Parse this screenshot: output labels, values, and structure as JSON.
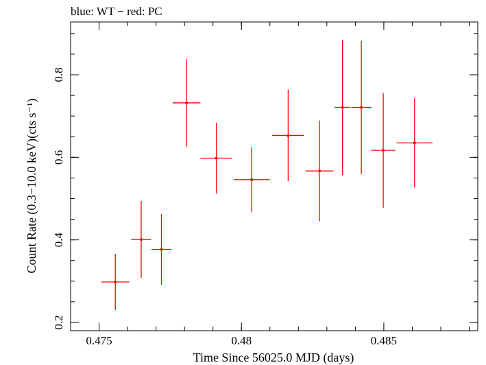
{
  "chart_data": {
    "type": "scatter",
    "title": "blue: WT − red: PC",
    "xlabel": "Time Since 56025.0 MJD (days)",
    "ylabel": "Count Rate (0.3−10.0 keV)(cts s⁻¹)",
    "xlim": [
      0.474,
      0.4883
    ],
    "ylim": [
      0.18,
      0.928
    ],
    "x_ticks": [
      {
        "value": 0.475,
        "label": "0.475"
      },
      {
        "value": 0.48,
        "label": "0.48"
      },
      {
        "value": 0.485,
        "label": "0.485"
      }
    ],
    "x_minor_step": 0.001,
    "y_ticks": [
      {
        "value": 0.2,
        "label": "0.2"
      },
      {
        "value": 0.4,
        "label": "0.4"
      },
      {
        "value": 0.6,
        "label": "0.6"
      },
      {
        "value": 0.8,
        "label": "0.8"
      }
    ],
    "y_minor_step": 0.05,
    "grid": false,
    "legend": "none",
    "series": [
      {
        "color": "#ff0000",
        "points": [
          {
            "x": 0.47557,
            "xerr_minus": 0.00049,
            "xerr_plus": 0.00049,
            "y": 0.298,
            "yerr_minus": 0.068,
            "yerr_plus": 0.068
          },
          {
            "x": 0.47648,
            "xerr_minus": 0.00035,
            "xerr_plus": 0.00035,
            "y": 0.401,
            "yerr_minus": 0.093,
            "yerr_plus": 0.093
          },
          {
            "x": 0.47719,
            "xerr_minus": 0.00035,
            "xerr_plus": 0.00035,
            "y": 0.377,
            "yerr_minus": 0.086,
            "yerr_plus": 0.086
          },
          {
            "x": 0.47807,
            "xerr_minus": 0.00049,
            "xerr_plus": 0.00049,
            "y": 0.732,
            "yerr_minus": 0.106,
            "yerr_plus": 0.106
          },
          {
            "x": 0.47912,
            "xerr_minus": 0.00056,
            "xerr_plus": 0.00056,
            "y": 0.598,
            "yerr_minus": 0.086,
            "yerr_plus": 0.086
          },
          {
            "x": 0.48036,
            "xerr_minus": 0.00063,
            "xerr_plus": 0.00063,
            "y": 0.546,
            "yerr_minus": 0.079,
            "yerr_plus": 0.079
          },
          {
            "x": 0.48164,
            "xerr_minus": 0.00056,
            "xerr_plus": 0.00056,
            "y": 0.653,
            "yerr_minus": 0.111,
            "yerr_plus": 0.111
          },
          {
            "x": 0.48274,
            "xerr_minus": 0.00049,
            "xerr_plus": 0.00049,
            "y": 0.567,
            "yerr_minus": 0.122,
            "yerr_plus": 0.122
          },
          {
            "x": 0.48355,
            "xerr_minus": 0.00028,
            "xerr_plus": 0.00028,
            "y": 0.721,
            "yerr_minus": 0.164,
            "yerr_plus": 0.164
          },
          {
            "x": 0.48421,
            "xerr_minus": 0.00035,
            "xerr_plus": 0.00035,
            "y": 0.721,
            "yerr_minus": 0.162,
            "yerr_plus": 0.162
          },
          {
            "x": 0.48498,
            "xerr_minus": 0.00042,
            "xerr_plus": 0.00042,
            "y": 0.617,
            "yerr_minus": 0.139,
            "yerr_plus": 0.139
          },
          {
            "x": 0.48608,
            "xerr_minus": 0.00063,
            "xerr_plus": 0.00063,
            "y": 0.635,
            "yerr_minus": 0.108,
            "yerr_plus": 0.108
          }
        ]
      }
    ]
  }
}
